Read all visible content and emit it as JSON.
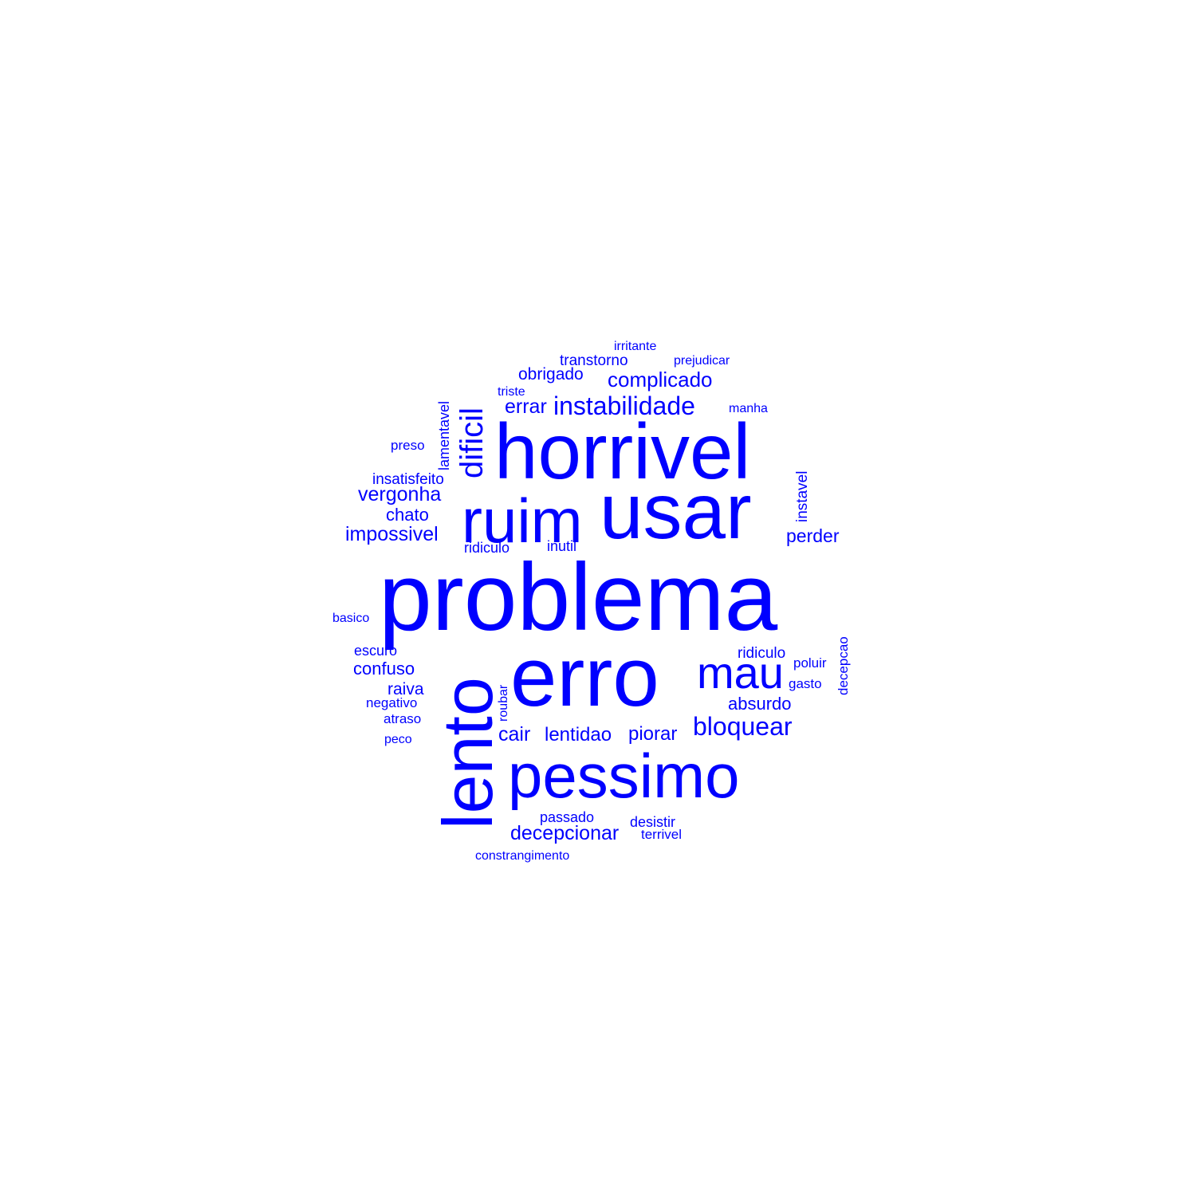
{
  "color": "#0000ff",
  "words": [
    {
      "text": "problema",
      "weight": 100
    },
    {
      "text": "erro",
      "weight": 85
    },
    {
      "text": "lento",
      "weight": 75
    },
    {
      "text": "horrivel",
      "weight": 72
    },
    {
      "text": "usar",
      "weight": 72
    },
    {
      "text": "pessimo",
      "weight": 65
    },
    {
      "text": "ruim",
      "weight": 60
    },
    {
      "text": "mau",
      "weight": 45
    },
    {
      "text": "dificil",
      "weight": 35
    },
    {
      "text": "instabilidade",
      "weight": 25
    },
    {
      "text": "bloquear",
      "weight": 25
    },
    {
      "text": "complicado",
      "weight": 20
    },
    {
      "text": "errar",
      "weight": 20
    },
    {
      "text": "vergonha",
      "weight": 20
    },
    {
      "text": "impossivel",
      "weight": 20
    },
    {
      "text": "perder",
      "weight": 20
    },
    {
      "text": "cair",
      "weight": 20
    },
    {
      "text": "lentidao",
      "weight": 20
    },
    {
      "text": "piorar",
      "weight": 20
    },
    {
      "text": "decepcionar",
      "weight": 20
    },
    {
      "text": "confuso",
      "weight": 18
    },
    {
      "text": "chato",
      "weight": 18
    },
    {
      "text": "absurdo",
      "weight": 18
    },
    {
      "text": "obrigado",
      "weight": 16
    },
    {
      "text": "transtorno",
      "weight": 15
    },
    {
      "text": "raiva",
      "weight": 15
    },
    {
      "text": "instavel",
      "weight": 15
    },
    {
      "text": "lamentavel",
      "weight": 14
    },
    {
      "text": "insatisfeito",
      "weight": 14
    },
    {
      "text": "ridiculo",
      "weight": 14
    },
    {
      "text": "ridiculo",
      "weight": 14
    },
    {
      "text": "inutil",
      "weight": 14
    },
    {
      "text": "escuro",
      "weight": 14
    },
    {
      "text": "passado",
      "weight": 14
    },
    {
      "text": "desistir",
      "weight": 14
    },
    {
      "text": "preso",
      "weight": 13
    },
    {
      "text": "poluir",
      "weight": 13
    },
    {
      "text": "gasto",
      "weight": 13
    },
    {
      "text": "decepcao",
      "weight": 13
    },
    {
      "text": "negativo",
      "weight": 13
    },
    {
      "text": "atraso",
      "weight": 13
    },
    {
      "text": "terrivel",
      "weight": 13
    },
    {
      "text": "irritante",
      "weight": 12
    },
    {
      "text": "prejudicar",
      "weight": 12
    },
    {
      "text": "triste",
      "weight": 12
    },
    {
      "text": "manha",
      "weight": 12
    },
    {
      "text": "basico",
      "weight": 12
    },
    {
      "text": "roubar",
      "weight": 12
    },
    {
      "text": "peco",
      "weight": 12
    },
    {
      "text": "constrangimento",
      "weight": 12
    }
  ]
}
